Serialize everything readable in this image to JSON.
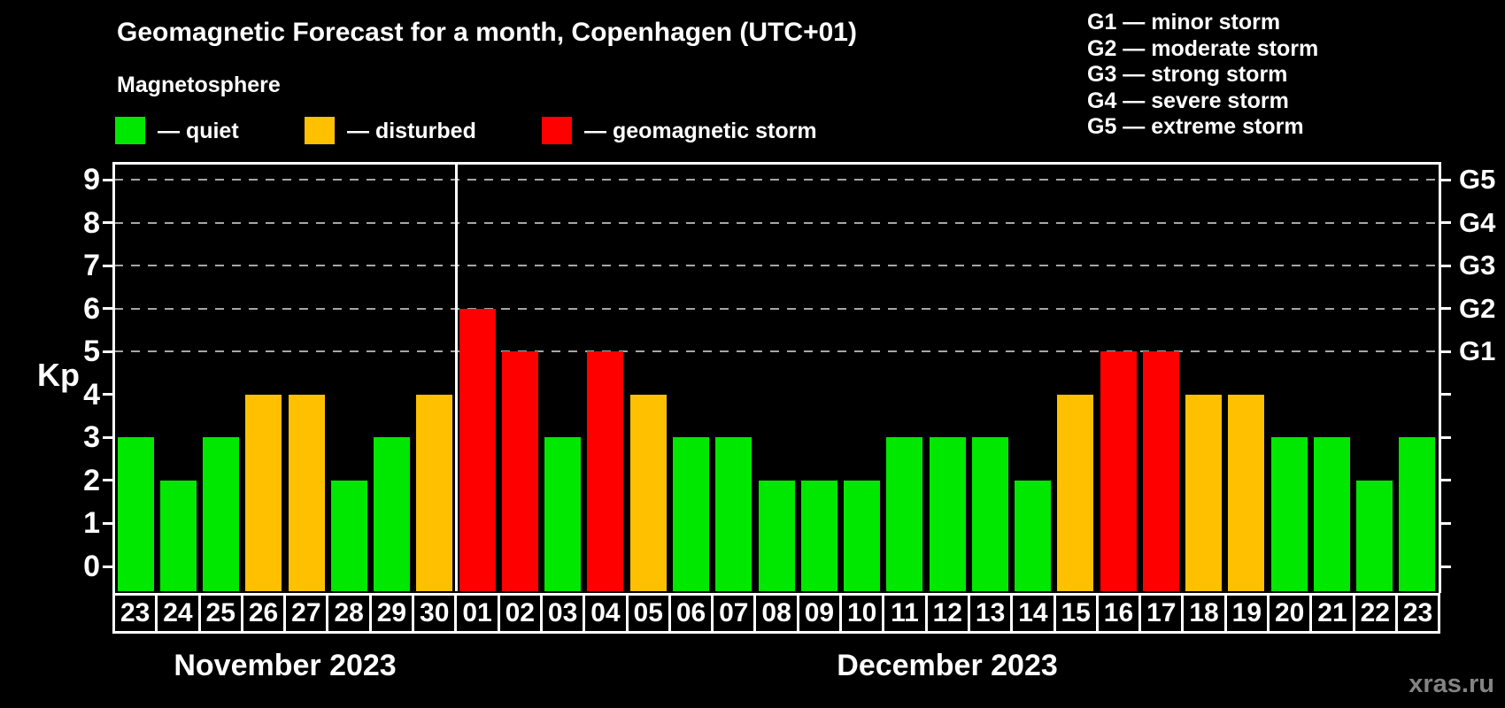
{
  "title": "Geomagnetic Forecast for a month, Copenhagen (UTC+01)",
  "subtitle": "Magnetosphere",
  "legend": {
    "quiet_label": "— quiet",
    "disturbed_label": "— disturbed",
    "storm_label": "— geomagnetic storm"
  },
  "g_legend": [
    "G1 — minor storm",
    "G2 — moderate storm",
    "G3 — strong storm",
    "G4 — severe storm",
    "G5 — extreme storm"
  ],
  "axis": {
    "y_title": "Kp",
    "y_ticks": [
      0,
      1,
      2,
      3,
      4,
      5,
      6,
      7,
      8,
      9
    ],
    "right_labels": [
      {
        "kp": 9,
        "label": "G5"
      },
      {
        "kp": 8,
        "label": "G4"
      },
      {
        "kp": 7,
        "label": "G3"
      },
      {
        "kp": 6,
        "label": "G2"
      },
      {
        "kp": 5,
        "label": "G1"
      }
    ]
  },
  "watermark": "xras.ru",
  "colors": {
    "background": "#000000",
    "frame": "#ffffff",
    "grid": "#a6a6a6",
    "quiet": "#00e800",
    "disturbed": "#ffc000",
    "storm": "#ff0000",
    "watermark_gray": "#838383"
  },
  "chart_data": {
    "type": "bar",
    "ylabel": "Kp",
    "ylim": [
      0,
      9.6
    ],
    "grid_levels": [
      5,
      6,
      7,
      8,
      9
    ],
    "legend_position": "top-left",
    "categories": [
      "23",
      "24",
      "25",
      "26",
      "27",
      "28",
      "29",
      "30",
      "01",
      "02",
      "03",
      "04",
      "05",
      "06",
      "07",
      "08",
      "09",
      "10",
      "11",
      "12",
      "13",
      "14",
      "15",
      "16",
      "17",
      "18",
      "19",
      "20",
      "21",
      "22",
      "23"
    ],
    "values": [
      3,
      2,
      3,
      4,
      4,
      2,
      3,
      4,
      6,
      5,
      3,
      5,
      4,
      3,
      3,
      2,
      2,
      2,
      3,
      3,
      3,
      2,
      4,
      5,
      5,
      4,
      4,
      3,
      3,
      2,
      3
    ],
    "statuses": [
      "quiet",
      "quiet",
      "quiet",
      "disturbed",
      "disturbed",
      "quiet",
      "quiet",
      "disturbed",
      "storm",
      "storm",
      "quiet",
      "storm",
      "disturbed",
      "quiet",
      "quiet",
      "quiet",
      "quiet",
      "quiet",
      "quiet",
      "quiet",
      "quiet",
      "quiet",
      "disturbed",
      "storm",
      "storm",
      "disturbed",
      "disturbed",
      "quiet",
      "quiet",
      "quiet",
      "quiet"
    ],
    "months": [
      {
        "label": "November 2023",
        "days": 8
      },
      {
        "label": "December 2023",
        "days": 23
      }
    ]
  }
}
